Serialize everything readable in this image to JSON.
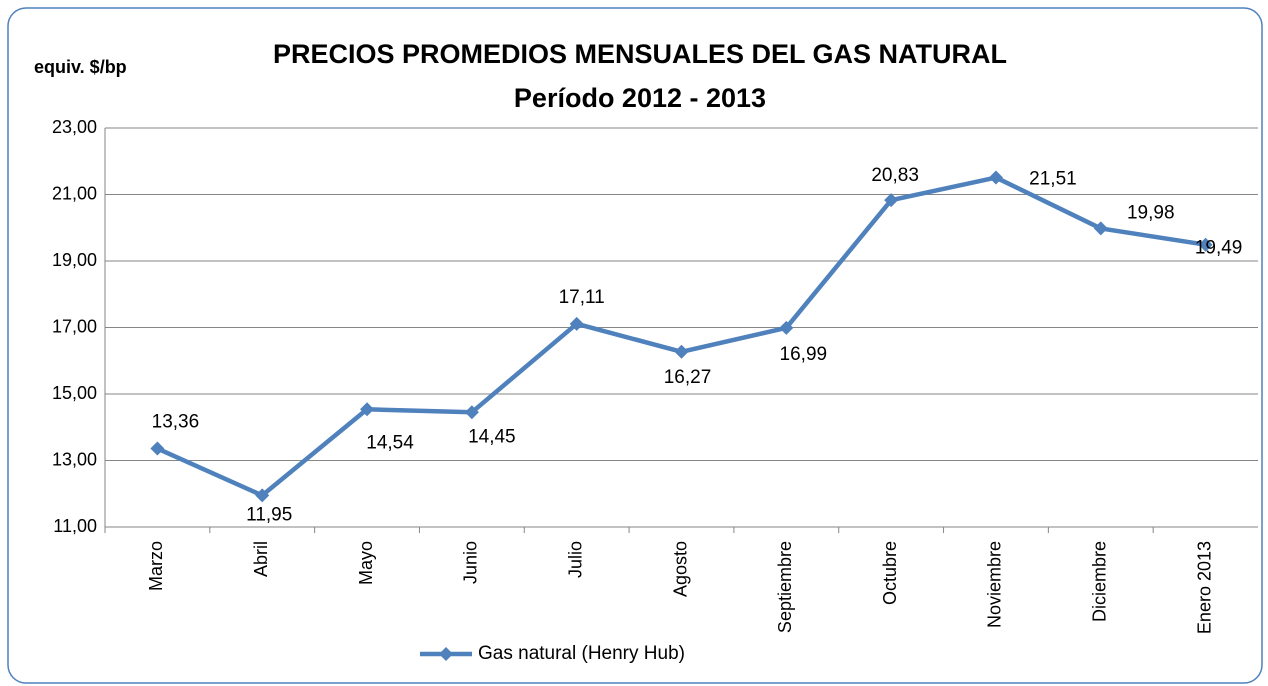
{
  "chart_data": {
    "type": "line",
    "title": "PRECIOS PROMEDIOS MENSUALES DEL GAS NATURAL",
    "subtitle": "Período 2012 - 2013",
    "y_label": "equiv. $/bp",
    "categories": [
      "Marzo",
      "Abril",
      "Mayo",
      "Junio",
      "Julio",
      "Agosto",
      "Septiembre",
      "Octubre",
      "Noviembre",
      "Diciembre",
      "Enero 2013"
    ],
    "series": [
      {
        "name": "Gas natural (Henry Hub)",
        "color": "#4f81bd",
        "values": [
          13.36,
          11.95,
          14.54,
          14.45,
          17.11,
          16.27,
          16.99,
          20.83,
          21.51,
          19.98,
          19.49
        ],
        "value_labels": [
          "13,36",
          "11,95",
          "14,54",
          "14,45",
          "17,11",
          "16,27",
          "16,99",
          "20,83",
          "21,51",
          "19,98",
          "19,49"
        ]
      }
    ],
    "ylim": [
      11,
      23
    ],
    "yticks": [
      {
        "value": 11,
        "label": "11,00"
      },
      {
        "value": 13,
        "label": "13,00"
      },
      {
        "value": 15,
        "label": "15,00"
      },
      {
        "value": 17,
        "label": "17,00"
      },
      {
        "value": 19,
        "label": "19,00"
      },
      {
        "value": 21,
        "label": "21,00"
      },
      {
        "value": 23,
        "label": "23,00"
      }
    ],
    "grid": true,
    "legend": "bottom"
  }
}
